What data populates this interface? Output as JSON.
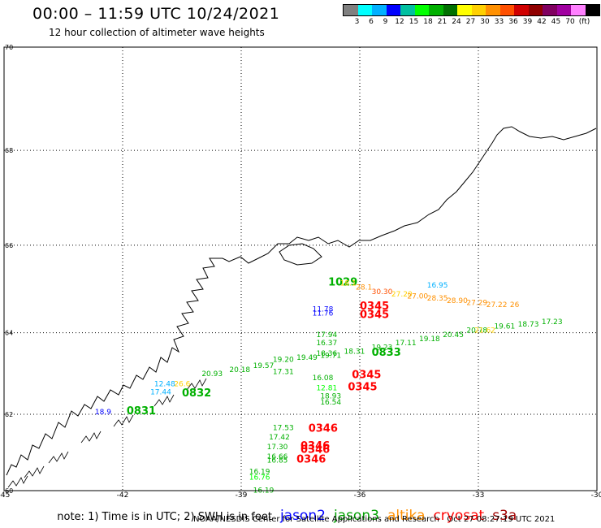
{
  "header": {
    "title": "00:00 – 11:59 UTC 10/24/2021",
    "subtitle": "12 hour collection of altimeter wave heights"
  },
  "color_scale": {
    "unit": "(ft)",
    "colors": [
      "#808080",
      "#00ffff",
      "#00b0ff",
      "#0000ff",
      "#00c0a0",
      "#00ff00",
      "#00b000",
      "#007000",
      "#ffff00",
      "#ffd000",
      "#ff9000",
      "#ff5000",
      "#d00000",
      "#900000",
      "#800060",
      "#a000a0",
      "#ff80ff",
      "#000000"
    ],
    "labels": [
      "3",
      "6",
      "9",
      "12",
      "15",
      "18",
      "21",
      "24",
      "27",
      "30",
      "33",
      "36",
      "39",
      "42",
      "45",
      "70",
      "(ft)"
    ]
  },
  "axes": {
    "lon_labels": [
      "-45",
      "-42",
      "-39",
      "-36",
      "-33",
      "-30"
    ],
    "lat_labels": [
      "70",
      "68",
      "66",
      "64",
      "62",
      "60"
    ]
  },
  "observations": [
    {
      "text": "16.95",
      "lon": -34.3,
      "lat": 65.05,
      "color": "#00b0ff"
    },
    {
      "text": "1029",
      "lon": -36.8,
      "lat": 65.1,
      "color": "#00b000",
      "big": true
    },
    {
      "text": "18.1",
      "lon": -36.5,
      "lat": 65.1,
      "color": "#ffd000"
    },
    {
      "text": "28.1",
      "lon": -36.1,
      "lat": 65.0,
      "color": "#ff9000"
    },
    {
      "text": "30.30",
      "lon": -35.7,
      "lat": 64.9,
      "color": "#ff5000"
    },
    {
      "text": "27.20",
      "lon": -35.2,
      "lat": 64.85,
      "color": "#ffd000"
    },
    {
      "text": "27.00",
      "lon": -34.8,
      "lat": 64.8,
      "color": "#ff9000"
    },
    {
      "text": "28.35",
      "lon": -34.3,
      "lat": 64.75,
      "color": "#ff9000"
    },
    {
      "text": "28.90",
      "lon": -33.8,
      "lat": 64.7,
      "color": "#ff9000"
    },
    {
      "text": "27.29",
      "lon": -33.3,
      "lat": 64.65,
      "color": "#ff9000"
    },
    {
      "text": "27.22",
      "lon": -32.8,
      "lat": 64.6,
      "color": "#ff9000"
    },
    {
      "text": "26",
      "lon": -32.2,
      "lat": 64.6,
      "color": "#ff9000"
    },
    {
      "text": "11.78",
      "lon": -37.2,
      "lat": 64.5,
      "color": "#0000ff"
    },
    {
      "text": "0345",
      "lon": -36.0,
      "lat": 64.55,
      "color": "#ff0000",
      "big": true
    },
    {
      "text": "11.76",
      "lon": -37.2,
      "lat": 64.4,
      "color": "#0000ff"
    },
    {
      "text": "0345",
      "lon": -36.0,
      "lat": 64.35,
      "color": "#ff0000",
      "big": true
    },
    {
      "text": "17.94",
      "lon": -37.1,
      "lat": 63.9,
      "color": "#00b000"
    },
    {
      "text": "16.37",
      "lon": -37.1,
      "lat": 63.7,
      "color": "#00b000"
    },
    {
      "text": "18.36",
      "lon": -37.1,
      "lat": 63.45,
      "color": "#00b000"
    },
    {
      "text": "19.20",
      "lon": -38.2,
      "lat": 63.3,
      "color": "#00b000"
    },
    {
      "text": "19.49",
      "lon": -37.6,
      "lat": 63.35,
      "color": "#00b000"
    },
    {
      "text": "19.71",
      "lon": -37.0,
      "lat": 63.4,
      "color": "#00b000"
    },
    {
      "text": "18.31",
      "lon": -36.4,
      "lat": 63.5,
      "color": "#00b000"
    },
    {
      "text": "19.23",
      "lon": -35.7,
      "lat": 63.6,
      "color": "#00b000"
    },
    {
      "text": "0833",
      "lon": -35.7,
      "lat": 63.45,
      "color": "#00b000",
      "big": true
    },
    {
      "text": "17.11",
      "lon": -35.1,
      "lat": 63.7,
      "color": "#00b000"
    },
    {
      "text": "19.18",
      "lon": -34.5,
      "lat": 63.8,
      "color": "#00b000"
    },
    {
      "text": "20.45",
      "lon": -33.9,
      "lat": 63.9,
      "color": "#00b000"
    },
    {
      "text": "20.78",
      "lon": -33.3,
      "lat": 64.0,
      "color": "#00b000"
    },
    {
      "text": "19.61",
      "lon": -32.6,
      "lat": 64.1,
      "color": "#00b000"
    },
    {
      "text": "18.73",
      "lon": -32.0,
      "lat": 64.15,
      "color": "#00b000"
    },
    {
      "text": "17.23",
      "lon": -31.4,
      "lat": 64.2,
      "color": "#00b000"
    },
    {
      "text": "21.62",
      "lon": -33.1,
      "lat": 64.0,
      "color": "#ffd000"
    },
    {
      "text": "20.93",
      "lon": -40.0,
      "lat": 62.95,
      "color": "#00b000"
    },
    {
      "text": "20.18",
      "lon": -39.3,
      "lat": 63.05,
      "color": "#00b000"
    },
    {
      "text": "19.57",
      "lon": -38.7,
      "lat": 63.15,
      "color": "#00b000"
    },
    {
      "text": "17.31",
      "lon": -38.2,
      "lat": 63.0,
      "color": "#00b000"
    },
    {
      "text": "16.08",
      "lon": -37.2,
      "lat": 62.85,
      "color": "#00b000"
    },
    {
      "text": "0345",
      "lon": -36.2,
      "lat": 62.9,
      "color": "#ff0000",
      "big": true
    },
    {
      "text": "12.81",
      "lon": -37.1,
      "lat": 62.6,
      "color": "#00ff00"
    },
    {
      "text": "0345",
      "lon": -36.3,
      "lat": 62.6,
      "color": "#ff0000",
      "big": true
    },
    {
      "text": "18.93",
      "lon": -37.0,
      "lat": 62.4,
      "color": "#00b000"
    },
    {
      "text": "16.54",
      "lon": -37.0,
      "lat": 62.25,
      "color": "#00b000"
    },
    {
      "text": "12.48",
      "lon": -41.2,
      "lat": 62.7,
      "color": "#00b0ff"
    },
    {
      "text": "26.6",
      "lon": -40.7,
      "lat": 62.7,
      "color": "#ffd000"
    },
    {
      "text": "17.44",
      "lon": -41.3,
      "lat": 62.5,
      "color": "#00b0ff"
    },
    {
      "text": "0832",
      "lon": -40.5,
      "lat": 62.45,
      "color": "#00b000",
      "big": true
    },
    {
      "text": "18.9",
      "lon": -42.7,
      "lat": 62.0,
      "color": "#0000ff"
    },
    {
      "text": "0831",
      "lon": -41.9,
      "lat": 62.0,
      "color": "#00b000",
      "big": true
    },
    {
      "text": "17.53",
      "lon": -38.2,
      "lat": 61.6,
      "color": "#00b000"
    },
    {
      "text": "0346",
      "lon": -37.3,
      "lat": 61.55,
      "color": "#ff0000",
      "big": true
    },
    {
      "text": "17.42",
      "lon": -38.3,
      "lat": 61.35,
      "color": "#00b000"
    },
    {
      "text": "17.30",
      "lon": -38.35,
      "lat": 61.1,
      "color": "#00b000"
    },
    {
      "text": "0346",
      "lon": -37.5,
      "lat": 61.1,
      "color": "#ff0000",
      "big": true
    },
    {
      "text": "0346",
      "lon": -37.5,
      "lat": 61.0,
      "color": "#ff0000",
      "big": true
    },
    {
      "text": "16.66",
      "lon": -38.35,
      "lat": 60.85,
      "color": "#00b000"
    },
    {
      "text": "16.85",
      "lon": -38.35,
      "lat": 60.75,
      "color": "#00b000"
    },
    {
      "text": "0346",
      "lon": -37.6,
      "lat": 60.75,
      "color": "#ff0000",
      "big": true
    },
    {
      "text": "16.19",
      "lon": -38.8,
      "lat": 60.45,
      "color": "#00b000"
    },
    {
      "text": "16.76",
      "lon": -38.8,
      "lat": 60.3,
      "color": "#00ff00"
    },
    {
      "text": "16.19",
      "lon": -38.7,
      "lat": 59.95,
      "color": "#00b000"
    }
  ],
  "legend": {
    "note": "note: 1) Time is in UTC; 2) SWH is in feet",
    "satellites": [
      {
        "name": "jason2",
        "color": "#0000ff"
      },
      {
        "name": "jason3",
        "color": "#00a000"
      },
      {
        "name": "altika",
        "color": "#ff9000"
      },
      {
        "name": "cryosat",
        "color": "#ff0000"
      },
      {
        "name": "s3a",
        "color": "#a00000"
      }
    ]
  },
  "footer": {
    "credit": "NOAA/NESDIS Center for Satellite Applications and Research",
    "timestamp": "Oct 27 08:27:19 UTC 2021"
  }
}
